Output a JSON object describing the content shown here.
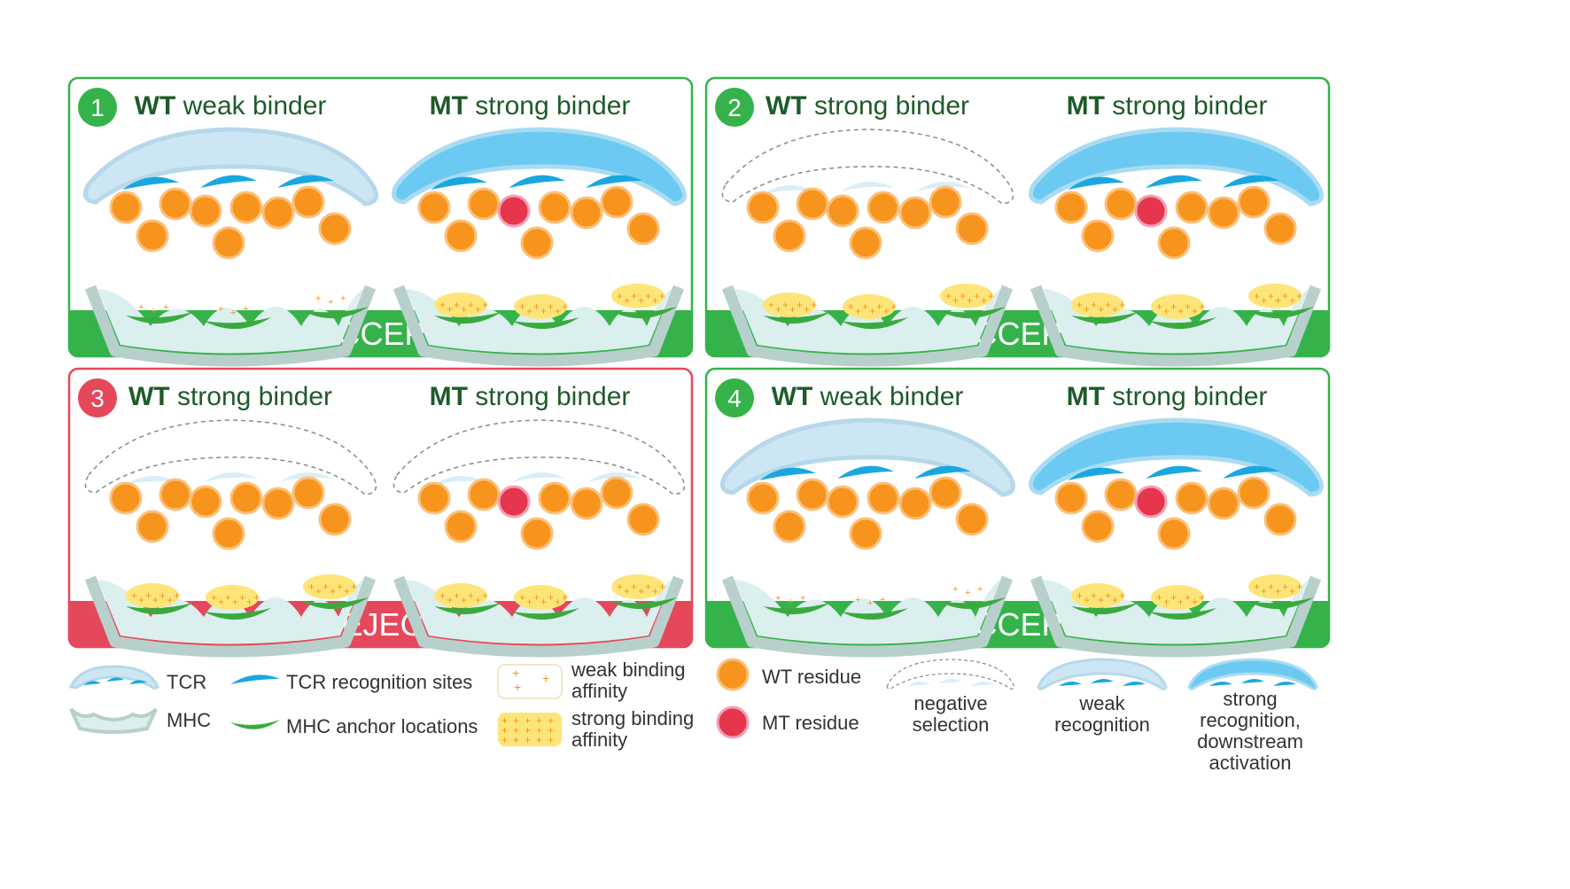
{
  "panels": [
    {
      "number": "1",
      "verdict": "ACCEPT",
      "status": "accept",
      "left": {
        "prefix": "WT",
        "label": "weak binder",
        "tcr": "weak",
        "binding": "weak",
        "mutant": false
      },
      "right": {
        "prefix": "MT",
        "label": "strong binder",
        "tcr": "strong",
        "binding": "strong",
        "mutant": true
      }
    },
    {
      "number": "2",
      "verdict": "ACCEPT",
      "status": "accept",
      "left": {
        "prefix": "WT",
        "label": "strong binder",
        "tcr": "negative",
        "binding": "strong",
        "mutant": false
      },
      "right": {
        "prefix": "MT",
        "label": "strong binder",
        "tcr": "strong",
        "binding": "strong",
        "mutant": true
      }
    },
    {
      "number": "3",
      "verdict": "REJECT",
      "status": "reject",
      "left": {
        "prefix": "WT",
        "label": "strong binder",
        "tcr": "negative",
        "binding": "strong",
        "mutant": false
      },
      "right": {
        "prefix": "MT",
        "label": "strong binder",
        "tcr": "negative",
        "binding": "strong",
        "mutant": true
      }
    },
    {
      "number": "4",
      "verdict": "ACCEPT",
      "status": "accept",
      "left": {
        "prefix": "WT",
        "label": "weak binder",
        "tcr": "weak",
        "binding": "weak",
        "mutant": false
      },
      "right": {
        "prefix": "MT",
        "label": "strong binder",
        "tcr": "strong",
        "binding": "strong",
        "mutant": true
      }
    }
  ],
  "legend": {
    "tcr": "TCR",
    "mhc": "MHC",
    "tcr_sites": "TCR recognition sites",
    "mhc_anchors": "MHC anchor locations",
    "weak_affinity": [
      "weak binding",
      "affinity"
    ],
    "strong_affinity": [
      "strong binding",
      "affinity"
    ],
    "wt_residue": "WT residue",
    "mt_residue": "MT residue",
    "negative": [
      "negative",
      "selection"
    ],
    "weak_recognition": [
      "weak",
      "recognition"
    ],
    "strong_recognition": [
      "strong",
      "recognition,",
      "downstream",
      "activation"
    ]
  },
  "colors": {
    "accept": "#35b34a",
    "reject": "#e5485a",
    "title_green": "#1e5b2a",
    "residue_wt": "#f7941d",
    "residue_mt": "#e5364d",
    "tcr_light": "#cde6f4",
    "tcr_strong": "#6ccaf2",
    "tcr_site": "#1aa7e0",
    "mhc_body": "#dcefef",
    "mhc_rim": "#b8d0cc",
    "anchor": "#3aaa3f",
    "weak_plus": "#f7941d",
    "strong_fill": "#fde57a"
  },
  "icons": [
    "tcr-icon",
    "mhc-icon",
    "wt-residue-icon",
    "mt-residue-icon"
  ]
}
